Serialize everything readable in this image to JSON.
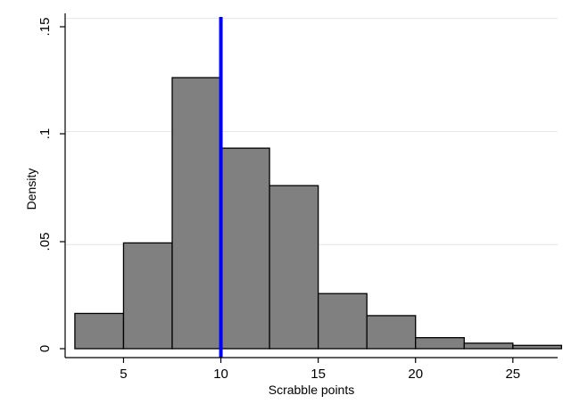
{
  "chart_data": {
    "type": "histogram",
    "xlabel": "Scrabble points",
    "ylabel": "Density",
    "xlim": [
      2,
      27.3
    ],
    "ylim": [
      0,
      0.155
    ],
    "x_ticks": [
      5,
      10,
      15,
      20,
      25
    ],
    "x_tick_labels": [
      "5",
      "10",
      "15",
      "20",
      "25"
    ],
    "y_ticks": [
      0,
      0.05,
      0.1,
      0.15
    ],
    "y_tick_labels": [
      "0",
      ".05",
      ".1",
      ".15"
    ],
    "grid": true,
    "bins": [
      {
        "x0": 2.5,
        "x1": 5.0,
        "density": 0.016
      },
      {
        "x0": 5.0,
        "x1": 7.5,
        "density": 0.048
      },
      {
        "x0": 7.5,
        "x1": 10.0,
        "density": 0.123
      },
      {
        "x0": 10.0,
        "x1": 12.5,
        "density": 0.091
      },
      {
        "x0": 12.5,
        "x1": 15.0,
        "density": 0.074
      },
      {
        "x0": 15.0,
        "x1": 17.5,
        "density": 0.025
      },
      {
        "x0": 17.5,
        "x1": 20.0,
        "density": 0.015
      },
      {
        "x0": 20.0,
        "x1": 22.5,
        "density": 0.005
      },
      {
        "x0": 22.5,
        "x1": 25.0,
        "density": 0.0025
      },
      {
        "x0": 25.0,
        "x1": 27.5,
        "density": 0.0015
      }
    ],
    "vertical_line": {
      "x": 10,
      "color": "#0000ff"
    },
    "colors": {
      "bar_fill": "#808080",
      "bar_edge": "#000000",
      "grid": "#e6e6e6"
    }
  }
}
